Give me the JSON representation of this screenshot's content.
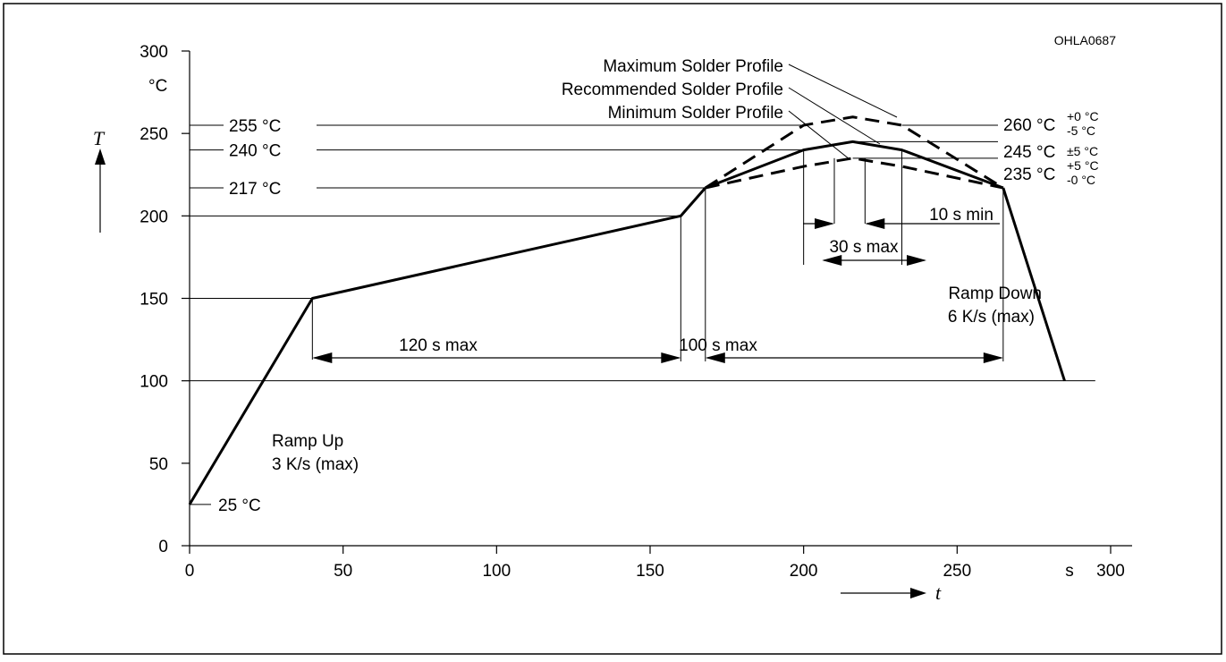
{
  "chart_data": {
    "type": "line",
    "code": "OHLA0687",
    "y_axis": {
      "symbol": "T",
      "unit": "°C",
      "ticks": [
        0,
        50,
        100,
        150,
        200,
        250,
        300
      ],
      "range": [
        0,
        300
      ]
    },
    "x_axis": {
      "symbol": "t",
      "unit": "s",
      "ticks": [
        0,
        50,
        100,
        150,
        200,
        250,
        300
      ],
      "range": [
        0,
        300
      ]
    },
    "base_profile": {
      "x": [
        0,
        40,
        160,
        168
      ],
      "y": [
        25,
        150,
        200,
        217
      ]
    },
    "series": [
      {
        "name": "Maximum Solder Profile",
        "style": "dashed",
        "x": [
          168,
          200,
          216,
          232,
          265
        ],
        "y": [
          217,
          255,
          260,
          255,
          217
        ]
      },
      {
        "name": "Recommended Solder Profile",
        "style": "solid",
        "x": [
          168,
          200,
          216,
          232,
          265
        ],
        "y": [
          217,
          240,
          245,
          240,
          217
        ]
      },
      {
        "name": "Minimum Solder Profile",
        "style": "dashed",
        "x": [
          168,
          200,
          216,
          232,
          265
        ],
        "y": [
          217,
          230,
          235,
          230,
          217
        ]
      }
    ],
    "ramp_down": {
      "x": [
        265,
        285
      ],
      "y": [
        217,
        100
      ]
    },
    "reference_lines": [
      {
        "label": "25 °C",
        "y": 25
      },
      {
        "label": "217 °C",
        "y": 217
      },
      {
        "label": "240 °C",
        "y": 240
      },
      {
        "label": "255 °C",
        "y": 255
      }
    ],
    "peak_labels": [
      {
        "value": "260 °C",
        "tol_plus": "+0 °C",
        "tol_minus": "-5 °C",
        "tol_single": ""
      },
      {
        "value": "245 °C",
        "tol_plus": "",
        "tol_minus": "",
        "tol_single": "±5 °C"
      },
      {
        "value": "235 °C",
        "tol_plus": "+5 °C",
        "tol_minus": "-0 °C",
        "tol_single": ""
      }
    ],
    "dimensions": [
      {
        "label": "120 s max",
        "x1": 40,
        "x2": 160
      },
      {
        "label": "100 s max",
        "x1": 168,
        "x2": 265
      },
      {
        "label": "30 s max",
        "x1": 206,
        "x2": 240
      },
      {
        "label": "10 s min",
        "x1": 210,
        "x2": 220
      }
    ],
    "annotations": {
      "ramp_up": [
        "Ramp Up",
        "3 K/s (max)"
      ],
      "ramp_down": [
        "Ramp Down",
        "6 K/s (max)"
      ]
    },
    "legend_placement": "leader-line labels, top-right",
    "grid": false
  }
}
